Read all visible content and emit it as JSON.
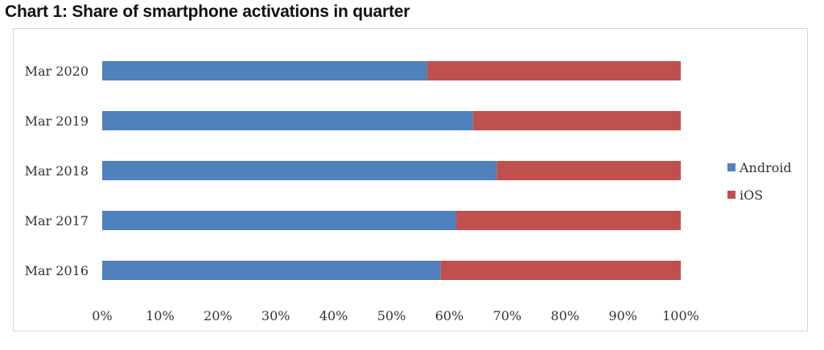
{
  "title": "Chart 1: Share of smartphone activations in quarter",
  "chart_data": {
    "type": "bar",
    "orientation": "horizontal",
    "stacked": true,
    "title": "Chart 1: Share of smartphone activations in quarter",
    "categories": [
      "Mar 2016",
      "Mar 2017",
      "Mar 2018",
      "Mar 2019",
      "Mar 2020"
    ],
    "series": [
      {
        "name": "Android",
        "color": "#4f81bd",
        "values": [
          58.5,
          61.2,
          68.2,
          64.1,
          56.2
        ]
      },
      {
        "name": "iOS",
        "color": "#c0504d",
        "values": [
          41.5,
          38.8,
          31.8,
          35.9,
          43.8
        ]
      }
    ],
    "xlim": [
      0,
      100
    ],
    "xticks": [
      "0%",
      "10%",
      "20%",
      "30%",
      "40%",
      "50%",
      "60%",
      "70%",
      "80%",
      "90%",
      "100%"
    ],
    "grid": false,
    "legend_position": "right"
  }
}
